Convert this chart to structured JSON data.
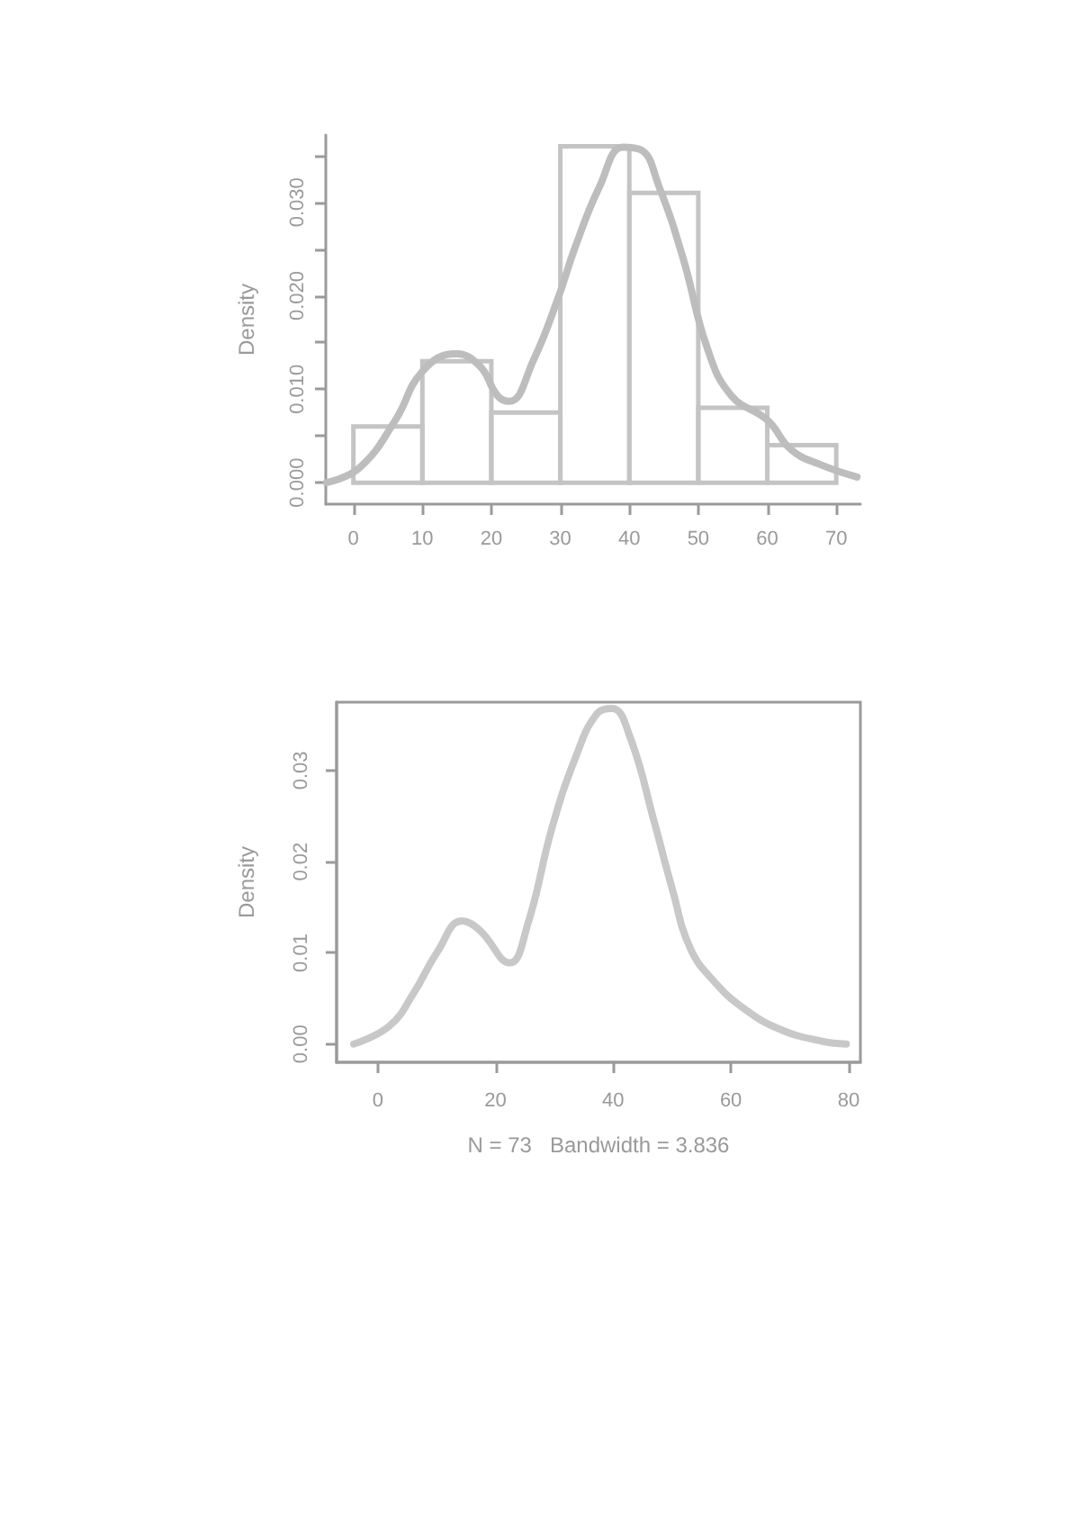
{
  "chart_data": [
    {
      "type": "histogram",
      "ylabel": "Density",
      "xlim": [
        -4,
        73.5
      ],
      "ylim": [
        -0.0023,
        0.0372
      ],
      "xticks": [
        0,
        10,
        20,
        30,
        40,
        50,
        60,
        70
      ],
      "yticks": [
        {
          "value": 0,
          "label": "0.000"
        },
        {
          "value": 0.005,
          "label": null
        },
        {
          "value": 0.01,
          "label": "0.010"
        },
        {
          "value": 0.015,
          "label": null
        },
        {
          "value": 0.02,
          "label": "0.020"
        },
        {
          "value": 0.025,
          "label": null
        },
        {
          "value": 0.03,
          "label": "0.030"
        },
        {
          "value": 0.035,
          "label": null
        }
      ],
      "series": [
        {
          "type": "histogram",
          "color": "#c4c4c4",
          "bins": [
            0,
            10,
            20,
            30,
            40,
            50,
            60,
            70
          ],
          "values": [
            0.006,
            0.013,
            0.0075,
            0.036,
            0.031,
            0.008,
            0.004
          ]
        },
        {
          "type": "line",
          "color": "#bdbdbd",
          "x": [
            -3.9,
            0.9,
            6.1,
            10,
            14.8,
            18.3,
            20.9,
            22.6,
            26.1,
            29.6,
            32.2,
            35.7,
            39.1,
            41.7,
            44.3,
            47.8,
            51.3,
            54.8,
            60,
            63.5,
            67.8,
            73
          ],
          "values": [
            0,
            0.0016,
            0.0067,
            0.0119,
            0.0138,
            0.0125,
            0.0093,
            0.0087,
            0.0131,
            0.0196,
            0.0253,
            0.0317,
            0.0359,
            0.0356,
            0.0317,
            0.024,
            0.0144,
            0.0093,
            0.0067,
            0.0035,
            0.0019,
            0.0006
          ]
        }
      ]
    },
    {
      "type": "line",
      "xlabel": "N = 73   Bandwidth = 3.836",
      "ylabel": "Density",
      "xlim": [
        -7,
        82
      ],
      "ylim": [
        -0.002,
        0.0375
      ],
      "xticks": [
        0,
        20,
        40,
        60,
        80
      ],
      "yticks": [
        {
          "value": 0,
          "label": "0.00"
        },
        {
          "value": 0.01,
          "label": "0.01"
        },
        {
          "value": 0.02,
          "label": "0.02"
        },
        {
          "value": 0.03,
          "label": "0.03"
        }
      ],
      "series": [
        {
          "color": "#c8c8c8",
          "x": [
            -4.1,
            2,
            6.1,
            10.2,
            14.3,
            17.3,
            22.4,
            25.5,
            29.6,
            33.7,
            37.2,
            39.8,
            42.9,
            47,
            50,
            53.1,
            57.1,
            62.2,
            68.4,
            75.5,
            79.6
          ],
          "values": [
            0,
            0.002,
            0.0056,
            0.0102,
            0.0135,
            0.0125,
            0.0089,
            0.0132,
            0.0237,
            0.0316,
            0.0362,
            0.0368,
            0.0336,
            0.0243,
            0.0171,
            0.0105,
            0.0069,
            0.0039,
            0.0016,
            0.0003,
            0
          ]
        }
      ]
    }
  ]
}
